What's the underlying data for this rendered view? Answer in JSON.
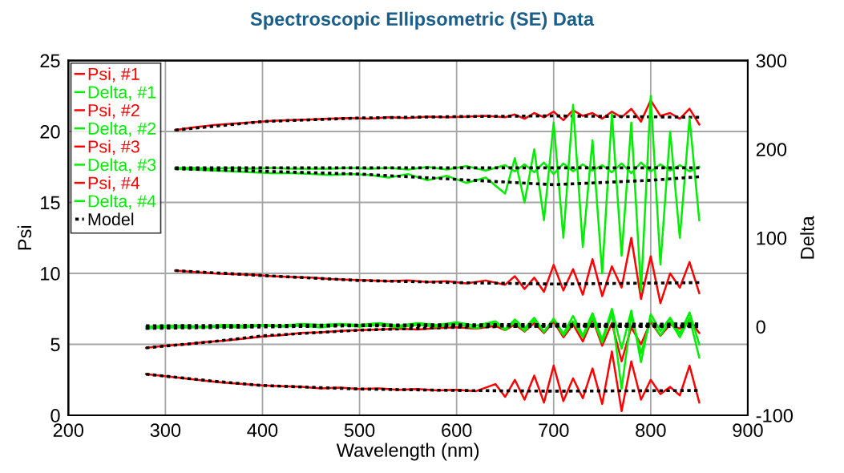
{
  "chart_data": {
    "type": "line",
    "title": "Spectroscopic Ellipsometric (SE) Data",
    "xlabel": "Wavelength (nm)",
    "ylabel": "Psi",
    "y2label": "Delta",
    "xlim": [
      200,
      900
    ],
    "xticks": [
      200,
      300,
      400,
      500,
      600,
      700,
      800,
      900
    ],
    "ylim": [
      0,
      25
    ],
    "yticks": [
      0,
      5,
      10,
      15,
      20,
      25
    ],
    "y2lim": [
      -100,
      300
    ],
    "y2ticks": [
      -100,
      0,
      100,
      200,
      300
    ],
    "grid": true,
    "legend": "top left",
    "line_style": "solid",
    "marker": "none",
    "series": [
      {
        "name": "Psi, #1",
        "color": "#ff0000",
        "x": [
          310,
          330,
          350,
          370,
          390,
          410,
          430,
          450,
          470,
          490,
          510,
          530,
          550,
          570,
          590,
          610,
          630,
          650,
          660,
          670,
          680,
          690,
          700,
          710,
          720,
          730,
          740,
          750,
          760,
          770,
          780,
          790,
          800,
          810,
          820,
          830,
          840,
          850
        ],
        "values": [
          20.1,
          20.3,
          20.45,
          20.55,
          20.65,
          20.75,
          20.8,
          20.85,
          20.9,
          20.95,
          20.9,
          21.0,
          20.95,
          21.05,
          21.0,
          21.05,
          21.1,
          21.0,
          21.2,
          20.9,
          21.3,
          21.0,
          21.4,
          20.8,
          21.5,
          21.1,
          21.3,
          20.9,
          21.4,
          21.0,
          21.6,
          20.7,
          22.2,
          21.1,
          21.3,
          20.9,
          21.6,
          20.5
        ]
      },
      {
        "name": "Delta, #1",
        "color": "#00ee00",
        "axis": "y2",
        "x": [
          310,
          330,
          350,
          370,
          390,
          410,
          430,
          450,
          470,
          490,
          510,
          530,
          550,
          570,
          590,
          610,
          630,
          650,
          660,
          670,
          680,
          690,
          700,
          710,
          720,
          730,
          740,
          750,
          760,
          770,
          780,
          790,
          800,
          810,
          820,
          830,
          840,
          850
        ],
        "values": [
          179,
          179,
          178,
          179,
          178,
          179,
          178,
          178,
          178,
          179,
          178,
          179,
          177,
          180,
          177,
          181,
          176,
          182,
          175,
          183,
          174,
          185,
          172,
          184,
          175,
          183,
          176,
          182,
          174,
          184,
          173,
          185,
          175,
          183,
          176,
          182,
          175,
          180
        ]
      },
      {
        "name": "Psi, #2",
        "color": "#ff0000",
        "x": [
          310,
          330,
          350,
          370,
          390,
          410,
          430,
          450,
          470,
          490,
          510,
          530,
          550,
          570,
          590,
          610,
          630,
          650,
          660,
          670,
          680,
          690,
          700,
          710,
          720,
          730,
          740,
          750,
          760,
          770,
          780,
          790,
          800,
          810,
          820,
          830,
          840,
          850
        ],
        "values": [
          10.2,
          10.1,
          10.0,
          9.95,
          9.9,
          9.8,
          9.75,
          9.7,
          9.6,
          9.55,
          9.5,
          9.45,
          9.5,
          9.4,
          9.45,
          9.3,
          9.5,
          9.2,
          9.8,
          8.9,
          9.7,
          8.7,
          10.6,
          8.8,
          10.3,
          8.5,
          11.0,
          8.4,
          10.5,
          9.0,
          12.5,
          8.2,
          11.2,
          7.9,
          10.0,
          9.0,
          10.8,
          8.6
        ]
      },
      {
        "name": "Delta, #2",
        "color": "#00ee00",
        "axis": "y2",
        "x": [
          310,
          330,
          350,
          370,
          390,
          410,
          430,
          450,
          470,
          490,
          510,
          530,
          550,
          570,
          590,
          610,
          630,
          650,
          660,
          670,
          680,
          690,
          700,
          710,
          720,
          730,
          740,
          750,
          760,
          770,
          780,
          790,
          800,
          810,
          820,
          830,
          840,
          850
        ],
        "values": [
          178,
          177,
          176,
          175,
          174,
          173,
          173,
          172,
          171,
          172,
          171,
          168,
          172,
          165,
          170,
          162,
          168,
          150,
          190,
          140,
          200,
          120,
          230,
          100,
          250,
          90,
          210,
          60,
          240,
          80,
          230,
          40,
          260,
          70,
          220,
          100,
          235,
          120
        ]
      },
      {
        "name": "Psi, #3",
        "color": "#ff0000",
        "x": [
          280,
          300,
          320,
          340,
          360,
          380,
          400,
          420,
          440,
          460,
          480,
          500,
          520,
          540,
          560,
          580,
          600,
          620,
          640,
          650,
          660,
          670,
          680,
          690,
          700,
          710,
          720,
          730,
          740,
          750,
          760,
          770,
          780,
          790,
          800,
          810,
          820,
          830,
          840,
          850
        ],
        "values": [
          4.75,
          4.9,
          5.0,
          5.15,
          5.25,
          5.4,
          5.55,
          5.65,
          5.8,
          5.85,
          5.95,
          6.0,
          6.05,
          6.1,
          6.05,
          6.15,
          6.2,
          6.1,
          6.3,
          6.0,
          6.4,
          5.9,
          6.5,
          5.8,
          6.6,
          5.5,
          6.4,
          5.2,
          6.8,
          4.9,
          6.5,
          3.8,
          6.2,
          5.0,
          6.6,
          5.6,
          6.4,
          6.1,
          6.7,
          5.8
        ]
      },
      {
        "name": "Delta, #3",
        "color": "#00ee00",
        "axis": "y2",
        "x": [
          280,
          300,
          320,
          340,
          360,
          380,
          400,
          420,
          440,
          460,
          480,
          500,
          520,
          540,
          560,
          580,
          600,
          620,
          640,
          650,
          660,
          670,
          680,
          690,
          700,
          710,
          720,
          730,
          740,
          750,
          760,
          770,
          780,
          790,
          800,
          810,
          820,
          830,
          840,
          850
        ],
        "values": [
          0,
          1,
          1,
          0,
          2,
          1,
          2,
          1,
          3,
          2,
          3,
          2,
          4,
          1,
          4,
          2,
          5,
          1,
          6,
          -3,
          8,
          -2,
          10,
          -6,
          9,
          -8,
          12,
          -10,
          15,
          -15,
          20,
          -25,
          18,
          -40,
          14,
          -5,
          10,
          -8,
          16,
          -20
        ]
      },
      {
        "name": "Psi, #4",
        "color": "#ff0000",
        "x": [
          280,
          300,
          320,
          340,
          360,
          380,
          400,
          420,
          440,
          460,
          480,
          500,
          520,
          540,
          560,
          580,
          600,
          620,
          640,
          650,
          660,
          670,
          680,
          690,
          700,
          710,
          720,
          730,
          740,
          750,
          760,
          770,
          780,
          790,
          800,
          810,
          820,
          830,
          840,
          850
        ],
        "values": [
          2.9,
          2.75,
          2.6,
          2.45,
          2.3,
          2.2,
          2.1,
          2.05,
          2.0,
          1.9,
          1.95,
          1.85,
          1.9,
          1.8,
          1.85,
          1.75,
          1.8,
          1.7,
          2.2,
          1.3,
          2.5,
          1.1,
          2.8,
          0.9,
          3.5,
          1.0,
          2.6,
          1.2,
          3.3,
          0.8,
          4.5,
          0.3,
          3.8,
          1.1,
          2.5,
          1.5,
          2.0,
          1.4,
          3.5,
          0.9
        ]
      },
      {
        "name": "Delta, #4",
        "color": "#00ee00",
        "axis": "y2",
        "x": [
          280,
          300,
          320,
          340,
          360,
          380,
          400,
          420,
          440,
          460,
          480,
          500,
          520,
          540,
          560,
          580,
          600,
          620,
          640,
          650,
          660,
          670,
          680,
          690,
          700,
          710,
          720,
          730,
          740,
          750,
          760,
          770,
          780,
          790,
          800,
          810,
          820,
          830,
          840,
          850
        ],
        "values": [
          -2,
          -1,
          -1,
          -1,
          0,
          -1,
          1,
          0,
          1,
          -1,
          2,
          0,
          2,
          -1,
          2,
          0,
          3,
          -2,
          4,
          -4,
          5,
          -5,
          7,
          -6,
          8,
          -10,
          6,
          -12,
          10,
          -18,
          15,
          -70,
          12,
          -30,
          8,
          -10,
          6,
          -12,
          10,
          -35
        ]
      },
      {
        "name": "Model",
        "color": "#000000",
        "line_style": "dotted",
        "x": [
          310,
          400,
          500,
          600,
          700,
          850
        ],
        "values": [
          20.1,
          20.7,
          20.95,
          21.05,
          21.1,
          21.0
        ]
      },
      {
        "color": "#000000",
        "line_style": "dotted",
        "axis": "y2",
        "x": [
          310,
          850
        ],
        "values": [
          179,
          179
        ]
      },
      {
        "color": "#000000",
        "line_style": "dotted",
        "x": [
          310,
          400,
          500,
          600,
          700,
          850
        ],
        "values": [
          10.2,
          9.85,
          9.5,
          9.35,
          9.25,
          9.35
        ]
      },
      {
        "color": "#000000",
        "line_style": "dotted",
        "axis": "y2",
        "x": [
          310,
          500,
          600,
          700,
          800,
          850
        ],
        "values": [
          178,
          172,
          166,
          160,
          165,
          169
        ]
      },
      {
        "color": "#000000",
        "line_style": "dotted",
        "x": [
          280,
          350,
          400,
          500,
          600,
          700,
          850
        ],
        "values": [
          4.75,
          5.2,
          5.6,
          6.0,
          6.2,
          6.3,
          6.3
        ]
      },
      {
        "color": "#000000",
        "line_style": "dotted",
        "axis": "y2",
        "x": [
          280,
          850
        ],
        "values": [
          1,
          3
        ]
      },
      {
        "color": "#000000",
        "line_style": "dotted",
        "x": [
          280,
          350,
          400,
          500,
          600,
          700,
          850
        ],
        "values": [
          2.9,
          2.4,
          2.1,
          1.85,
          1.75,
          1.7,
          1.75
        ]
      },
      {
        "color": "#000000",
        "line_style": "dotted",
        "axis": "y2",
        "x": [
          280,
          500,
          850
        ],
        "values": [
          -2,
          1,
          0
        ]
      }
    ]
  }
}
